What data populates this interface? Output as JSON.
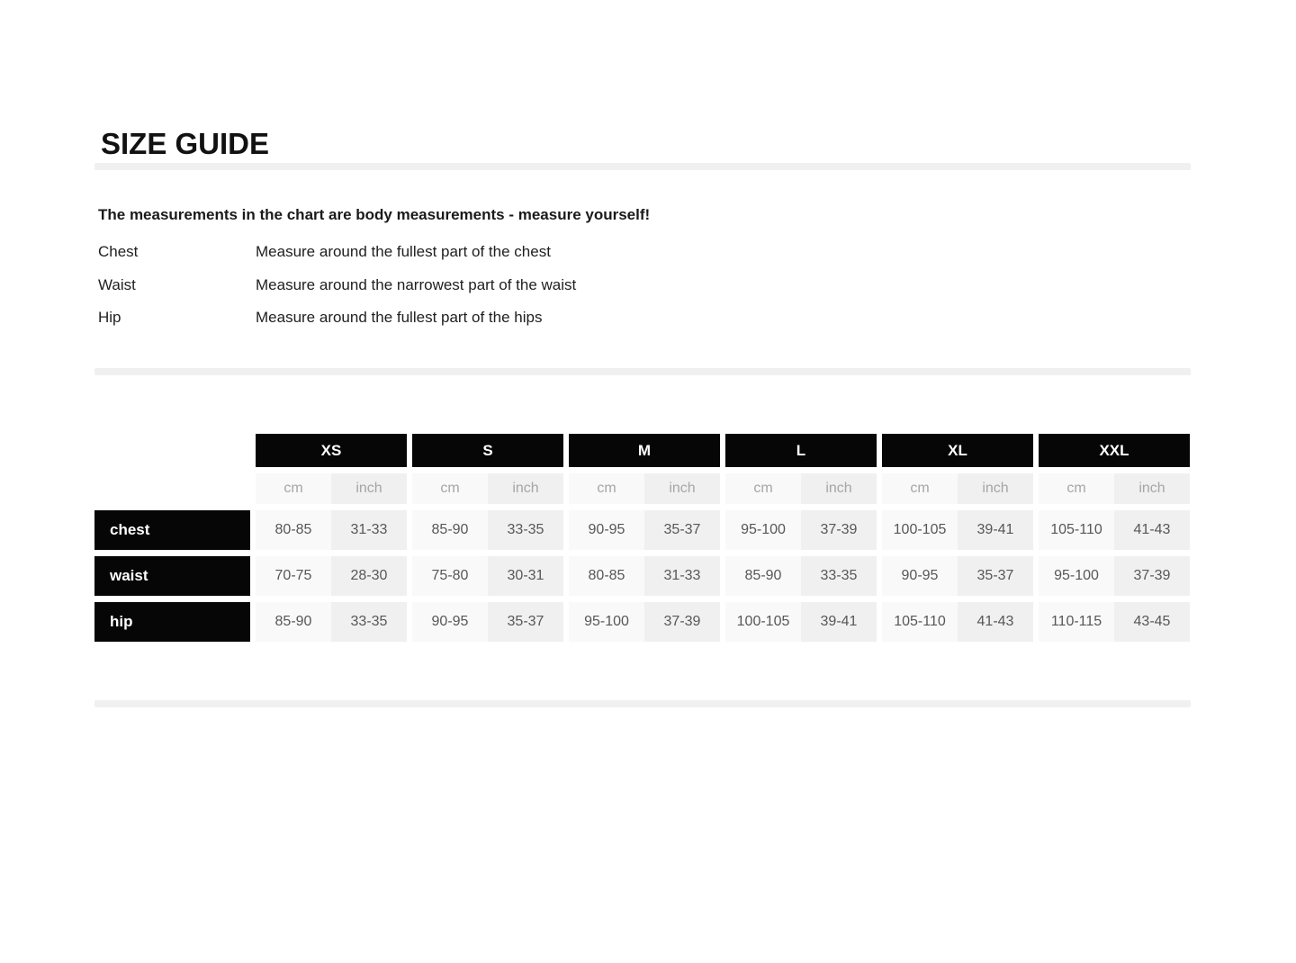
{
  "page": {
    "title": "SIZE GUIDE"
  },
  "intro": {
    "heading": "The measurements in the chart are body measurements - measure yourself!",
    "items": [
      {
        "label": "Chest",
        "description": "Measure around the fullest part of the chest"
      },
      {
        "label": "Waist",
        "description": "Measure around the narrowest part of the waist"
      },
      {
        "label": "Hip",
        "description": "Measure around the fullest part of the hips"
      }
    ]
  },
  "size_table": {
    "sizes": [
      "XS",
      "S",
      "M",
      "L",
      "XL",
      "XXL"
    ],
    "unit_headers": [
      "cm",
      "inch"
    ],
    "rows": [
      {
        "label": "chest",
        "values": [
          [
            "80-85",
            "31-33"
          ],
          [
            "85-90",
            "33-35"
          ],
          [
            "90-95",
            "35-37"
          ],
          [
            "95-100",
            "37-39"
          ],
          [
            "100-105",
            "39-41"
          ],
          [
            "105-110",
            "41-43"
          ]
        ]
      },
      {
        "label": "waist",
        "values": [
          [
            "70-75",
            "28-30"
          ],
          [
            "75-80",
            "30-31"
          ],
          [
            "80-85",
            "31-33"
          ],
          [
            "85-90",
            "33-35"
          ],
          [
            "90-95",
            "35-37"
          ],
          [
            "95-100",
            "37-39"
          ]
        ]
      },
      {
        "label": "hip",
        "values": [
          [
            "85-90",
            "33-35"
          ],
          [
            "90-95",
            "35-37"
          ],
          [
            "95-100",
            "37-39"
          ],
          [
            "100-105",
            "39-41"
          ],
          [
            "105-110",
            "41-43"
          ],
          [
            "110-115",
            "43-45"
          ]
        ]
      }
    ]
  },
  "colors": {
    "header_bg": "#060606",
    "header_text": "#ffffff",
    "divider": "#f0f0f0",
    "cm_cell_bg": "#f9f9f9",
    "inch_cell_bg": "#f0f0f0",
    "unit_text": "#a6a6a6",
    "value_text": "#575757"
  }
}
